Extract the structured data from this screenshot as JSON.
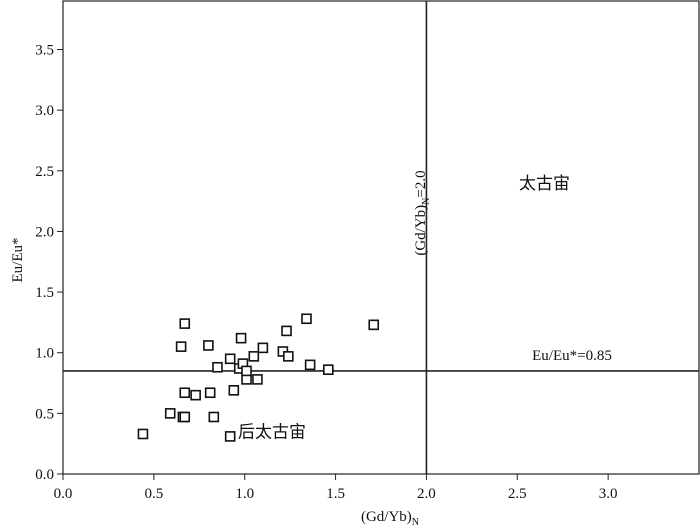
{
  "chart_data": {
    "type": "scatter",
    "title": "",
    "xlabel": {
      "main": "(Gd/Yb)",
      "sub": "N"
    },
    "ylabel": "Eu/Eu*",
    "xlim": [
      0.0,
      3.5
    ],
    "ylim": [
      0.0,
      3.9
    ],
    "xticks": [
      "0.0",
      "0.5",
      "1.0",
      "1.5",
      "2.0",
      "2.5",
      "3.0"
    ],
    "yticks": [
      "0.0",
      "0.5",
      "1.0",
      "1.5",
      "2.0",
      "2.5",
      "3.0",
      "3.5"
    ],
    "grid": false,
    "legend": "none",
    "marker": "open-square",
    "reference_lines": [
      {
        "orientation": "vertical",
        "value": 2.0,
        "label_main": "(Gd/Yb)",
        "label_sub": "N",
        "label_suffix": "=2.0"
      },
      {
        "orientation": "horizontal",
        "value": 0.85,
        "label": "Eu/Eu*=0.85"
      }
    ],
    "region_labels": [
      {
        "text": "太古宙",
        "x": 2.65,
        "y": 2.35
      },
      {
        "text": "后太古宙",
        "x": 1.15,
        "y": 0.3
      }
    ],
    "series": [
      {
        "points": [
          [
            0.44,
            0.33
          ],
          [
            0.59,
            0.5
          ],
          [
            0.66,
            0.47
          ],
          [
            0.67,
            0.47
          ],
          [
            0.65,
            1.05
          ],
          [
            0.67,
            1.24
          ],
          [
            0.67,
            0.67
          ],
          [
            0.73,
            0.65
          ],
          [
            0.8,
            1.06
          ],
          [
            0.81,
            0.67
          ],
          [
            0.83,
            0.47
          ],
          [
            0.85,
            0.88
          ],
          [
            0.92,
            0.31
          ],
          [
            0.92,
            0.95
          ],
          [
            0.94,
            0.69
          ],
          [
            0.97,
            0.87
          ],
          [
            0.98,
            1.12
          ],
          [
            0.99,
            0.91
          ],
          [
            1.01,
            0.78
          ],
          [
            1.01,
            0.85
          ],
          [
            1.05,
            0.97
          ],
          [
            1.07,
            0.78
          ],
          [
            1.1,
            1.04
          ],
          [
            1.21,
            1.01
          ],
          [
            1.23,
            1.18
          ],
          [
            1.24,
            0.97
          ],
          [
            1.34,
            1.28
          ],
          [
            1.36,
            0.9
          ],
          [
            1.46,
            0.86
          ],
          [
            1.71,
            1.23
          ]
        ]
      }
    ]
  }
}
